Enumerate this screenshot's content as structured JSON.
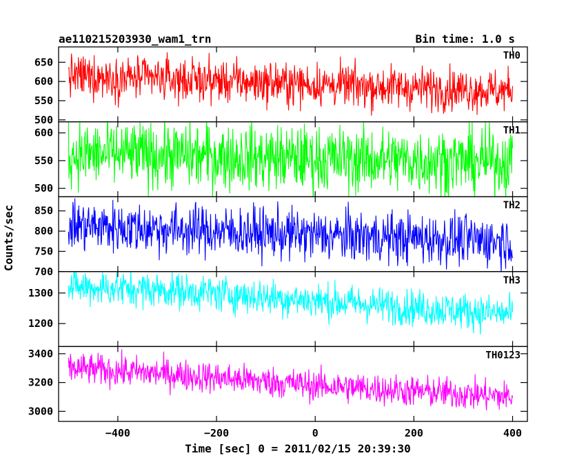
{
  "chart_data": {
    "type": "line",
    "title_left": "ae110215203930_wam1_trn",
    "title_right": "Bin time: 1.0 s",
    "xlabel": "Time [sec] 0 = 2011/02/15 20:39:30",
    "ylabel": "Counts/sec",
    "xlim": [
      -520,
      430
    ],
    "x_range": [
      -500,
      400
    ],
    "x_step": 1,
    "xticks": [
      -400,
      -200,
      0,
      200,
      400
    ],
    "xtick_labels": [
      "−400",
      "−200",
      "0",
      "200",
      "400"
    ],
    "panels": [
      {
        "name": "TH0",
        "color": "#ff0000",
        "ylim": [
          495,
          690
        ],
        "yticks": [
          500,
          550,
          600,
          650
        ],
        "ytick_labels": [
          "500",
          "550",
          "600",
          "650"
        ],
        "trend": [
          [
            -500,
            615
          ],
          [
            -300,
            606
          ],
          [
            0,
            592
          ],
          [
            400,
            575
          ]
        ],
        "noise": 28
      },
      {
        "name": "TH1",
        "color": "#00ff00",
        "ylim": [
          485,
          620
        ],
        "yticks": [
          500,
          550,
          600
        ],
        "ytick_labels": [
          "500",
          "550",
          "600"
        ],
        "trend": [
          [
            -500,
            562
          ],
          [
            -300,
            560
          ],
          [
            0,
            553
          ],
          [
            400,
            548
          ]
        ],
        "noise": 30
      },
      {
        "name": "TH2",
        "color": "#0000ff",
        "ylim": [
          700,
          885
        ],
        "yticks": [
          700,
          750,
          800,
          850
        ],
        "ytick_labels": [
          "700",
          "750",
          "800",
          "850"
        ],
        "trend": [
          [
            -500,
            815
          ],
          [
            -300,
            805
          ],
          [
            0,
            790
          ],
          [
            400,
            775
          ]
        ],
        "noise": 32
      },
      {
        "name": "TH3",
        "color": "#00ffff",
        "ylim": [
          1125,
          1370
        ],
        "yticks": [
          1200,
          1300
        ],
        "ytick_labels": [
          "1200",
          "1300"
        ],
        "trend": [
          [
            -500,
            1320
          ],
          [
            -300,
            1310
          ],
          [
            0,
            1275
          ],
          [
            400,
            1230
          ]
        ],
        "noise": 30
      },
      {
        "name": "TH0123",
        "color": "#ff00ff",
        "ylim": [
          2930,
          3450
        ],
        "yticks": [
          3000,
          3200,
          3400
        ],
        "ytick_labels": [
          "3000",
          "3200",
          "3400"
        ],
        "trend": [
          [
            -500,
            3300
          ],
          [
            -300,
            3260
          ],
          [
            0,
            3180
          ],
          [
            400,
            3100
          ]
        ],
        "noise": 55
      }
    ]
  }
}
